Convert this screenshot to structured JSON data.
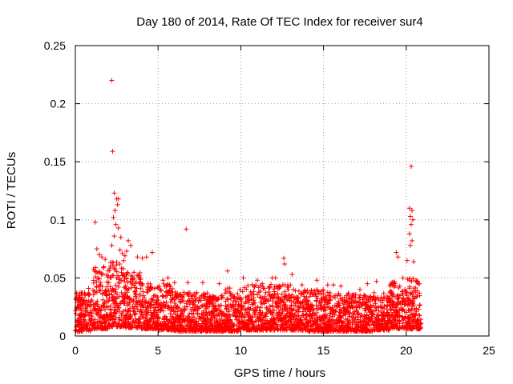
{
  "chart_data": {
    "type": "scatter",
    "title": "Day 180 of 2014, Rate Of TEC Index for receiver sur4",
    "xlabel": "GPS time / hours",
    "ylabel": "ROTI / TECUs",
    "xlim": [
      0,
      25
    ],
    "ylim": [
      0,
      0.25
    ],
    "xticks": [
      0,
      5,
      10,
      15,
      20,
      25
    ],
    "yticks": [
      0,
      0.05,
      0.1,
      0.15,
      0.2,
      0.25
    ],
    "xtick_labels": [
      "0",
      "5",
      "10",
      "15",
      "20",
      "25"
    ],
    "ytick_labels": [
      "0",
      "0.05",
      "0.1",
      "0.15",
      "0.2",
      "0.25"
    ],
    "grid": true,
    "marker": "+",
    "marker_color": "#ff0000",
    "series": [
      {
        "name": "ROTI",
        "points": [
          [
            2.2,
            0.22
          ],
          [
            2.25,
            0.159
          ],
          [
            20.3,
            0.146
          ],
          [
            2.35,
            0.123
          ],
          [
            2.5,
            0.118
          ],
          [
            2.6,
            0.118
          ],
          [
            2.55,
            0.113
          ],
          [
            2.4,
            0.108
          ],
          [
            2.3,
            0.102
          ],
          [
            2.45,
            0.096
          ],
          [
            2.6,
            0.093
          ],
          [
            1.2,
            0.098
          ],
          [
            6.7,
            0.092
          ],
          [
            2.35,
            0.086
          ],
          [
            2.75,
            0.085
          ],
          [
            3.2,
            0.082
          ],
          [
            3.35,
            0.078
          ],
          [
            2.2,
            0.078
          ],
          [
            20.2,
            0.11
          ],
          [
            20.35,
            0.108
          ],
          [
            20.25,
            0.103
          ],
          [
            20.4,
            0.1
          ],
          [
            20.3,
            0.096
          ],
          [
            20.2,
            0.088
          ],
          [
            20.35,
            0.082
          ],
          [
            20.25,
            0.078
          ],
          [
            19.4,
            0.072
          ],
          [
            19.5,
            0.068
          ],
          [
            20.05,
            0.065
          ],
          [
            20.45,
            0.064
          ],
          [
            1.3,
            0.075
          ],
          [
            1.45,
            0.07
          ],
          [
            1.6,
            0.068
          ],
          [
            1.8,
            0.066
          ],
          [
            2.7,
            0.074
          ],
          [
            2.85,
            0.071
          ],
          [
            3.0,
            0.069
          ],
          [
            3.1,
            0.073
          ],
          [
            4.65,
            0.072
          ],
          [
            4.3,
            0.068
          ],
          [
            3.75,
            0.068
          ],
          [
            4.05,
            0.067
          ],
          [
            12.6,
            0.067
          ],
          [
            12.65,
            0.062
          ],
          [
            9.2,
            0.056
          ],
          [
            10.15,
            0.05
          ],
          [
            11.9,
            0.05
          ],
          [
            13.7,
            0.044
          ],
          [
            14.6,
            0.048
          ],
          [
            15.25,
            0.044
          ],
          [
            15.6,
            0.044
          ],
          [
            16.05,
            0.043
          ],
          [
            17.65,
            0.045
          ],
          [
            18.2,
            0.047
          ],
          [
            19.1,
            0.045
          ],
          [
            6.0,
            0.046
          ],
          [
            6.8,
            0.046
          ],
          [
            7.7,
            0.046
          ],
          [
            8.7,
            0.045
          ],
          [
            13.1,
            0.053
          ],
          [
            11.0,
            0.048
          ],
          [
            12.1,
            0.05
          ],
          [
            5.3,
            0.048
          ],
          [
            5.6,
            0.05
          ],
          [
            0.35,
            0.037
          ],
          [
            0.6,
            0.035
          ],
          [
            0.8,
            0.041
          ],
          [
            0.15,
            0.032
          ],
          [
            0.45,
            0.028
          ],
          [
            19.8,
            0.05
          ],
          [
            20.8,
            0.045
          ],
          [
            20.6,
            0.048
          ],
          [
            16.5,
            0.037
          ],
          [
            17.2,
            0.04
          ]
        ],
        "dense_band": [
          {
            "x_start": 0.0,
            "x_end": 1.0,
            "y_min": 0.004,
            "y_max": 0.038
          },
          {
            "x_start": 1.0,
            "x_end": 2.0,
            "y_min": 0.006,
            "y_max": 0.06
          },
          {
            "x_start": 2.0,
            "x_end": 3.0,
            "y_min": 0.008,
            "y_max": 0.065
          },
          {
            "x_start": 3.0,
            "x_end": 4.0,
            "y_min": 0.007,
            "y_max": 0.055
          },
          {
            "x_start": 4.0,
            "x_end": 5.0,
            "y_min": 0.006,
            "y_max": 0.045
          },
          {
            "x_start": 5.0,
            "x_end": 6.0,
            "y_min": 0.005,
            "y_max": 0.045
          },
          {
            "x_start": 6.0,
            "x_end": 7.0,
            "y_min": 0.004,
            "y_max": 0.038
          },
          {
            "x_start": 7.0,
            "x_end": 8.0,
            "y_min": 0.004,
            "y_max": 0.038
          },
          {
            "x_start": 8.0,
            "x_end": 9.0,
            "y_min": 0.004,
            "y_max": 0.035
          },
          {
            "x_start": 9.0,
            "x_end": 10.0,
            "y_min": 0.004,
            "y_max": 0.042
          },
          {
            "x_start": 10.0,
            "x_end": 11.0,
            "y_min": 0.005,
            "y_max": 0.045
          },
          {
            "x_start": 11.0,
            "x_end": 12.0,
            "y_min": 0.005,
            "y_max": 0.045
          },
          {
            "x_start": 12.0,
            "x_end": 13.0,
            "y_min": 0.005,
            "y_max": 0.045
          },
          {
            "x_start": 13.0,
            "x_end": 14.0,
            "y_min": 0.005,
            "y_max": 0.04
          },
          {
            "x_start": 14.0,
            "x_end": 15.0,
            "y_min": 0.004,
            "y_max": 0.04
          },
          {
            "x_start": 15.0,
            "x_end": 16.0,
            "y_min": 0.004,
            "y_max": 0.038
          },
          {
            "x_start": 16.0,
            "x_end": 17.0,
            "y_min": 0.004,
            "y_max": 0.036
          },
          {
            "x_start": 17.0,
            "x_end": 18.0,
            "y_min": 0.004,
            "y_max": 0.036
          },
          {
            "x_start": 18.0,
            "x_end": 19.0,
            "y_min": 0.005,
            "y_max": 0.038
          },
          {
            "x_start": 19.0,
            "x_end": 20.0,
            "y_min": 0.006,
            "y_max": 0.048
          },
          {
            "x_start": 20.0,
            "x_end": 20.9,
            "y_min": 0.006,
            "y_max": 0.05
          }
        ]
      }
    ]
  }
}
